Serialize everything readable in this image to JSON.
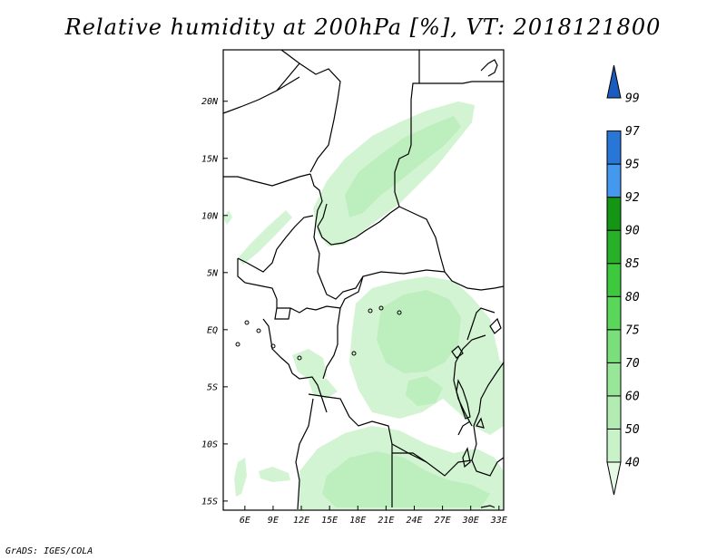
{
  "title": "Relative humidity at 200hPa [%], VT: 2018121800",
  "credit": "GrADS: IGES/COLA",
  "map": {
    "lon_range": [
      3.7,
      33.5
    ],
    "lat_range": [
      -15.8,
      24.5
    ],
    "lon_ticks": [
      {
        "value": 6,
        "label": "6E"
      },
      {
        "value": 9,
        "label": "9E"
      },
      {
        "value": 12,
        "label": "12E"
      },
      {
        "value": 15,
        "label": "15E"
      },
      {
        "value": 18,
        "label": "18E"
      },
      {
        "value": 21,
        "label": "21E"
      },
      {
        "value": 24,
        "label": "24E"
      },
      {
        "value": 27,
        "label": "27E"
      },
      {
        "value": 30,
        "label": "30E"
      },
      {
        "value": 33,
        "label": "33E"
      }
    ],
    "lat_ticks": [
      {
        "value": 20,
        "label": "20N"
      },
      {
        "value": 15,
        "label": "15N"
      },
      {
        "value": 10,
        "label": "10N"
      },
      {
        "value": 5,
        "label": "5N"
      },
      {
        "value": 0,
        "label": "EQ"
      },
      {
        "value": -5,
        "label": "5S"
      },
      {
        "value": -10,
        "label": "10S"
      },
      {
        "value": -15,
        "label": "15S"
      }
    ]
  },
  "colorbar": {
    "levels": [
      "40",
      "50",
      "60",
      "70",
      "75",
      "80",
      "85",
      "90",
      "92",
      "95",
      "97",
      "99"
    ],
    "colors": [
      "#e6f9e6",
      "#c8f2c8",
      "#b2ecb2",
      "#98e698",
      "#7ade7a",
      "#5ad65a",
      "#3ec83e",
      "#28b028",
      "#149614",
      "#4499ee",
      "#2877d6",
      "#1a5bbf"
    ]
  },
  "colors": {
    "coast": "#000000",
    "rh_50": "#d2f4d2",
    "rh_60": "#bdeebd"
  }
}
